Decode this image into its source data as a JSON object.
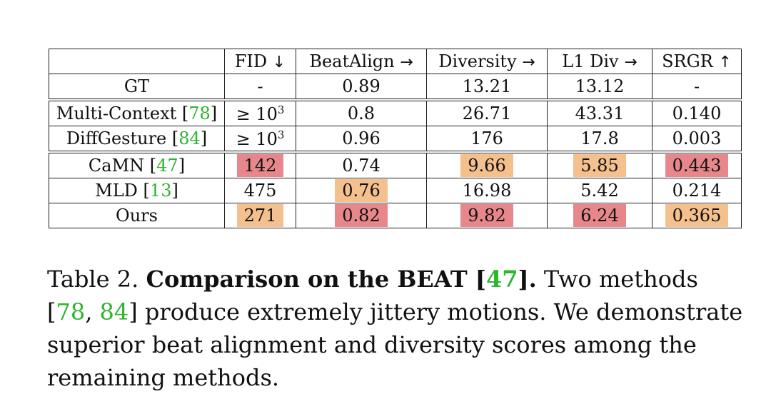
{
  "table": {
    "headers": [
      "",
      "FID",
      "BeatAlign",
      "Diversity",
      "L1 Div",
      "SRGR"
    ],
    "header_arrows": [
      "",
      "↓",
      "→",
      "→",
      "→",
      "↑"
    ],
    "gt": {
      "method": "GT",
      "values": [
        "-",
        "0.89",
        "13.21",
        "13.12",
        "-"
      ]
    },
    "jitter_rows": [
      {
        "method": "Multi-Context",
        "cite": "78",
        "fid_base": "≥ 10",
        "fid_exp": "3",
        "values": [
          "0.8",
          "26.71",
          "43.31",
          "0.140"
        ]
      },
      {
        "method": "DiffGesture",
        "cite": "84",
        "fid_base": "≥ 10",
        "fid_exp": "3",
        "values": [
          "0.96",
          "176",
          "17.8",
          "0.003"
        ]
      }
    ],
    "main_rows": [
      {
        "method": "CaMN",
        "cite": "47",
        "values": [
          "142",
          "0.74",
          "9.66",
          "5.85",
          "0.443"
        ],
        "highlights": [
          "red",
          "",
          "orange",
          "orange",
          "red"
        ]
      },
      {
        "method": "MLD",
        "cite": "13",
        "values": [
          "475",
          "0.76",
          "16.98",
          "5.42",
          "0.214"
        ],
        "highlights": [
          "",
          "orange",
          "",
          "",
          ""
        ]
      },
      {
        "method": "Ours",
        "cite": "",
        "values": [
          "271",
          "0.82",
          "9.82",
          "6.24",
          "0.365"
        ],
        "highlights": [
          "orange",
          "red",
          "red",
          "red",
          "orange"
        ]
      }
    ],
    "colors": {
      "best": "#e8878b",
      "second": "#f4c08e",
      "cite": "#2db52d"
    }
  },
  "caption": {
    "label": "Table 2.",
    "bold_title": "Comparison on the BEAT [",
    "bold_cite": "47",
    "bold_end": "].",
    "text1": " Two methods [",
    "cite_a": "78",
    "sep": ", ",
    "cite_b": "84",
    "text2": "] produce extremely jittery motions. We demonstrate superior beat alignment and diversity scores among the remaining methods."
  }
}
